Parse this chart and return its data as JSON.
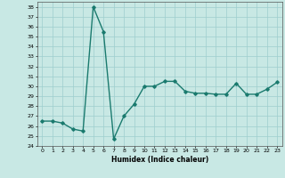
{
  "x": [
    0,
    1,
    2,
    3,
    4,
    5,
    6,
    7,
    8,
    9,
    10,
    11,
    12,
    13,
    14,
    15,
    16,
    17,
    18,
    19,
    20,
    21,
    22,
    23
  ],
  "y": [
    26.5,
    26.5,
    26.3,
    25.7,
    25.5,
    38.0,
    35.5,
    24.7,
    27.0,
    28.2,
    30.0,
    30.0,
    30.5,
    30.5,
    29.5,
    29.3,
    29.3,
    29.2,
    29.2,
    30.3,
    29.2,
    29.2,
    29.7,
    30.4
  ],
  "xlabel": "Humidex (Indice chaleur)",
  "xlim": [
    -0.5,
    23.5
  ],
  "ylim": [
    24,
    38.5
  ],
  "yticks": [
    24,
    25,
    26,
    27,
    28,
    29,
    30,
    31,
    32,
    33,
    34,
    35,
    36,
    37,
    38
  ],
  "xticks": [
    0,
    1,
    2,
    3,
    4,
    5,
    6,
    7,
    8,
    9,
    10,
    11,
    12,
    13,
    14,
    15,
    16,
    17,
    18,
    19,
    20,
    21,
    22,
    23
  ],
  "line_color": "#1a7a6e",
  "bg_color": "#c8e8e4",
  "grid_color": "#9ecece",
  "marker": "D",
  "marker_size": 1.8,
  "line_width": 1.0
}
